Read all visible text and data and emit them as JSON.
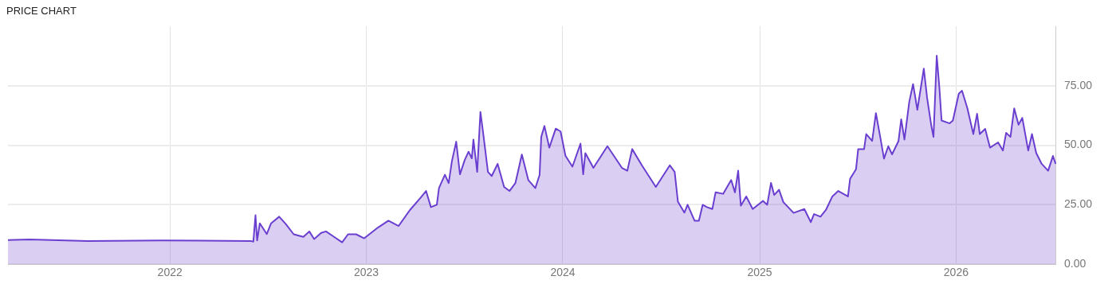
{
  "chart_data": {
    "type": "area",
    "title": "PRICE CHART",
    "color": "#6a3fd0",
    "x": [
      "2021-03-06",
      "2021-04-15",
      "2021-08-01",
      "2021-12-17",
      "2022-05-31",
      "2022-06-05",
      "2022-06-09",
      "2022-06-12",
      "2022-06-17",
      "2022-06-30",
      "2022-07-08",
      "2022-07-23",
      "2022-08-04",
      "2022-08-19",
      "2022-09-06",
      "2022-09-17",
      "2022-09-26",
      "2022-10-09",
      "2022-10-18",
      "2022-11-02",
      "2022-11-17",
      "2022-11-28",
      "2022-12-13",
      "2022-12-28",
      "2023-01-23",
      "2023-02-11",
      "2023-03-02",
      "2023-03-23",
      "2023-04-12",
      "2023-04-22",
      "2023-05-01",
      "2023-05-12",
      "2023-05-16",
      "2023-05-27",
      "2023-06-03",
      "2023-06-09",
      "2023-06-17",
      "2023-06-24",
      "2023-07-03",
      "2023-07-10",
      "2023-07-16",
      "2023-07-19",
      "2023-07-26",
      "2023-08-01",
      "2023-08-07",
      "2023-08-15",
      "2023-08-22",
      "2023-09-02",
      "2023-09-14",
      "2023-09-24",
      "2023-10-05",
      "2023-10-17",
      "2023-10-29",
      "2023-11-11",
      "2023-11-19",
      "2023-11-22",
      "2023-11-28",
      "2023-12-07",
      "2023-12-19",
      "2023-12-28",
      "2024-01-06",
      "2024-01-19",
      "2024-02-03",
      "2024-02-08",
      "2024-02-12",
      "2024-02-27",
      "2024-03-24",
      "2024-04-20",
      "2024-04-30",
      "2024-05-09",
      "2024-05-27",
      "2024-06-22",
      "2024-07-18",
      "2024-07-27",
      "2024-08-02",
      "2024-08-14",
      "2024-08-20",
      "2024-09-02",
      "2024-09-10",
      "2024-09-17",
      "2024-09-25",
      "2024-10-05",
      "2024-10-11",
      "2024-10-25",
      "2024-11-09",
      "2024-11-16",
      "2024-11-22",
      "2024-11-27",
      "2024-12-07",
      "2024-12-19",
      "2025-01-07",
      "2025-01-15",
      "2025-01-22",
      "2025-01-28",
      "2025-02-06",
      "2025-02-14",
      "2025-03-05",
      "2025-03-25",
      "2025-04-06",
      "2025-04-12",
      "2025-04-24",
      "2025-05-04",
      "2025-05-16",
      "2025-05-27",
      "2025-06-14",
      "2025-06-18",
      "2025-06-29",
      "2025-07-03",
      "2025-07-14",
      "2025-07-18",
      "2025-07-29",
      "2025-08-05",
      "2025-08-13",
      "2025-08-20",
      "2025-08-28",
      "2025-09-04",
      "2025-09-16",
      "2025-09-21",
      "2025-09-27",
      "2025-10-06",
      "2025-10-13",
      "2025-10-21",
      "2025-11-02",
      "2025-11-08",
      "2025-11-16",
      "2025-11-20",
      "2025-11-26",
      "2025-12-01",
      "2025-12-05",
      "2025-12-20",
      "2025-12-26",
      "2026-01-06",
      "2026-01-12",
      "2026-01-22",
      "2026-02-02",
      "2026-02-09",
      "2026-02-14",
      "2026-02-24",
      "2026-03-05",
      "2026-03-20",
      "2026-03-29",
      "2026-04-04",
      "2026-04-12",
      "2026-04-19",
      "2026-04-27",
      "2026-05-04",
      "2026-05-15",
      "2026-05-22",
      "2026-05-30",
      "2026-06-09",
      "2026-06-21",
      "2026-06-30",
      "2026-07-05"
    ],
    "values": [
      10.2,
      10.4,
      9.8,
      10,
      9.8,
      9.5,
      20.6,
      10,
      17.2,
      12.7,
      17.2,
      20,
      17,
      12.6,
      11.5,
      13.8,
      10.6,
      13.2,
      13.8,
      11.5,
      9.2,
      12.6,
      12.6,
      10.9,
      15.5,
      18.3,
      16.1,
      22.8,
      28,
      30.8,
      24,
      25,
      32,
      37.6,
      34.1,
      43.3,
      51.5,
      37.8,
      43.9,
      47.3,
      44.5,
      52.4,
      38.8,
      64,
      53.5,
      38.8,
      37.1,
      42.2,
      32.5,
      30.8,
      34.1,
      46.1,
      35.4,
      32,
      37.6,
      53.5,
      58.1,
      49,
      57,
      55.8,
      45.6,
      41,
      50.7,
      37.8,
      46.7,
      40.5,
      49.6,
      40.5,
      39.3,
      48.4,
      41.6,
      32.5,
      41.6,
      38.8,
      26.3,
      21.7,
      25,
      18.3,
      18.3,
      25,
      24,
      23.2,
      30.2,
      29.6,
      35.4,
      30.2,
      39.3,
      24.6,
      28.5,
      23.2,
      26.6,
      25,
      34.2,
      29.1,
      31.3,
      26.1,
      21.6,
      23.2,
      17.7,
      21.1,
      20,
      22.8,
      28.5,
      30.8,
      28.5,
      35.9,
      39.9,
      48.4,
      48.4,
      54.7,
      51.8,
      63.5,
      53.5,
      44.4,
      49.6,
      46.2,
      51.8,
      60.9,
      52.4,
      68.3,
      75.7,
      64.9,
      82.2,
      70.1,
      58.1,
      53.5,
      87.6,
      74,
      60.4,
      59.2,
      60.4,
      71.7,
      72.9,
      65.5,
      54.7,
      63.2,
      54.7,
      56.9,
      49,
      51.2,
      47.8,
      55.2,
      53.5,
      65.5,
      58.6,
      61.5,
      47.8,
      54.7,
      46.7,
      42.2,
      39.3,
      45.5,
      42.2
    ],
    "xlim": [
      "2021-03-06",
      "2026-07-06"
    ],
    "xticks": [
      "2022",
      "2023",
      "2024",
      "2025",
      "2026"
    ],
    "ylim": [
      0,
      100
    ],
    "yticks": [
      {
        "value": 0,
        "label": "0.00"
      },
      {
        "value": 25,
        "label": "25.00"
      },
      {
        "value": 50,
        "label": "50.00"
      },
      {
        "value": 75,
        "label": "75.00"
      }
    ],
    "grid": true
  }
}
